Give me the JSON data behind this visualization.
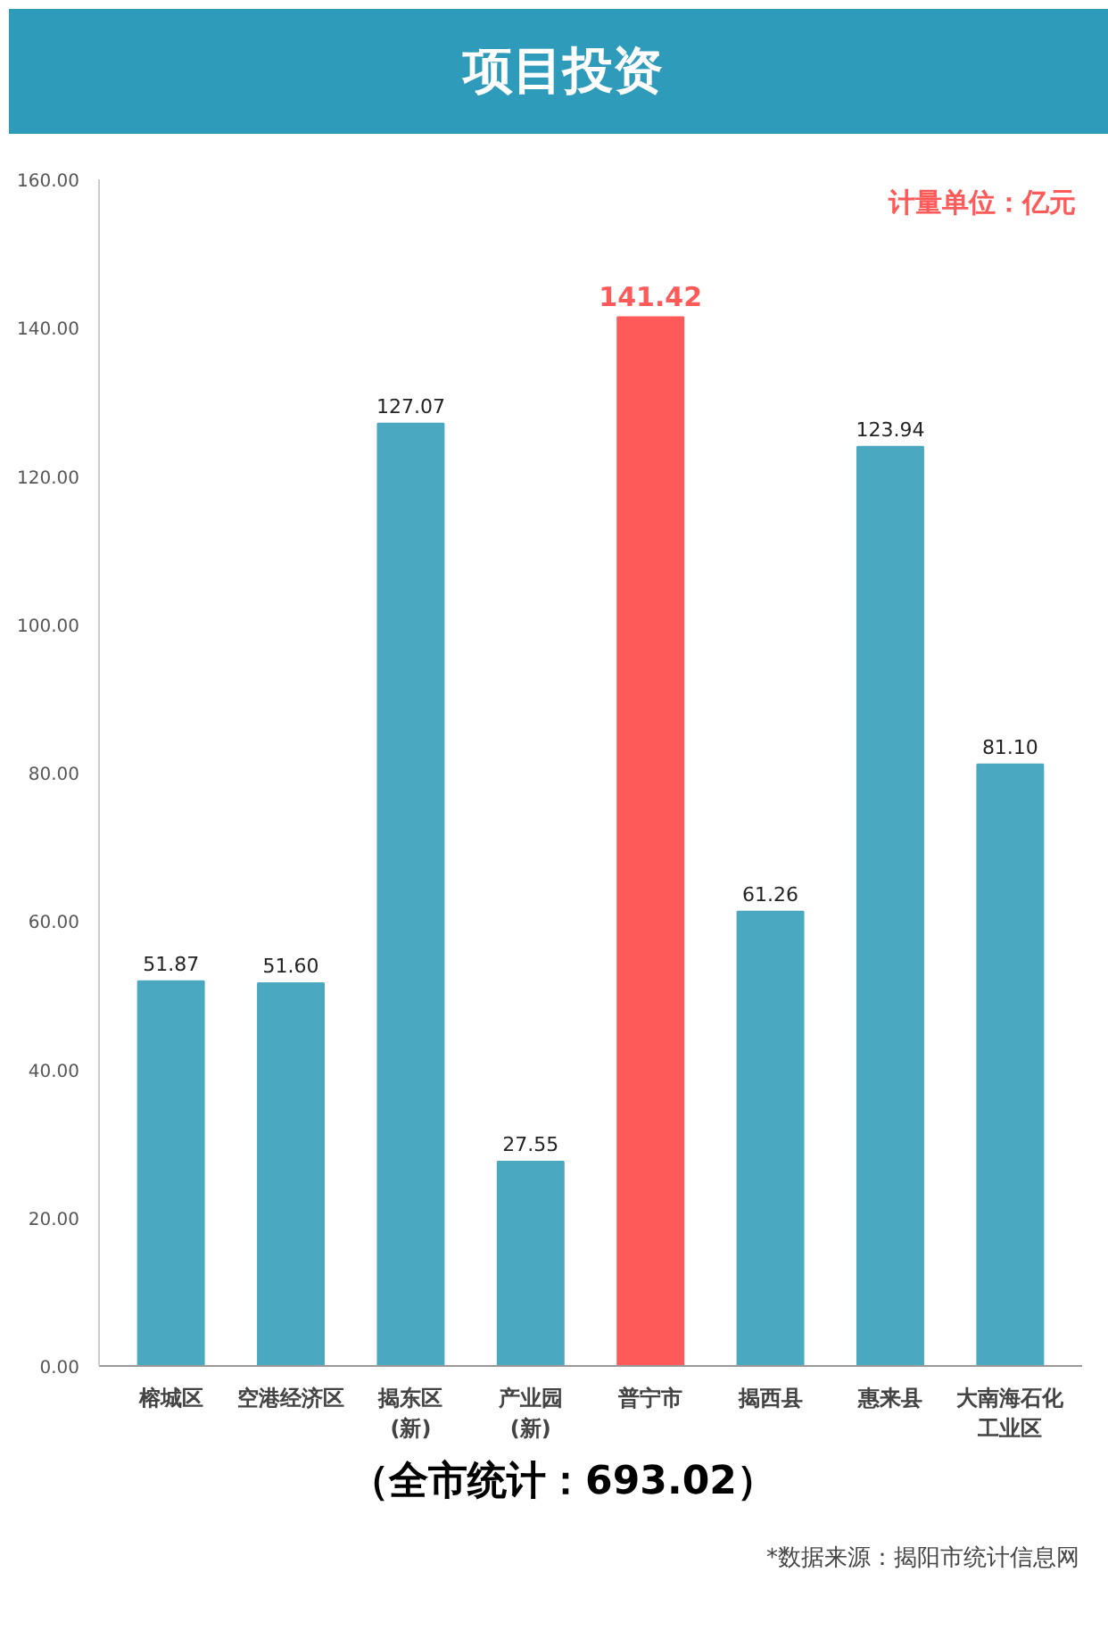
{
  "chart_data": {
    "type": "bar",
    "title": "项目投资",
    "categories": [
      "榕城区",
      "空港经济区",
      "揭东区(新)",
      "产业园(新)",
      "普宁市",
      "揭西县",
      "惠来县",
      "大南海石化工业区"
    ],
    "values": [
      51.87,
      51.6,
      127.07,
      27.55,
      141.42,
      61.26,
      123.94,
      81.1
    ],
    "colors": [
      "#4aa8c0",
      "#4aa8c0",
      "#4aa8c0",
      "#4aa8c0",
      "#ff5a5a",
      "#4aa8c0",
      "#4aa8c0",
      "#4aa8c0"
    ],
    "ylim": [
      0,
      160
    ],
    "yticks": [
      {
        "value": 0,
        "label": "0.00"
      },
      {
        "value": 20,
        "label": "20.00"
      },
      {
        "value": 40,
        "label": "40.00"
      },
      {
        "value": 60,
        "label": "60.00"
      },
      {
        "value": 80,
        "label": "80.00"
      },
      {
        "value": 100,
        "label": "100.00"
      },
      {
        "value": 120,
        "label": "120.00"
      },
      {
        "value": 140,
        "label": "140.00"
      },
      {
        "value": 160,
        "label": "160.00"
      }
    ],
    "value_labels": [
      "51.87",
      "51.60",
      "127.07",
      "27.55",
      "141.42",
      "61.26",
      "123.94",
      "81.10"
    ],
    "grid": false,
    "annotations": [
      "计量单位：亿元",
      "（全市统计：693.02）",
      "*数据来源：揭阳市统计信息网"
    ]
  }
}
